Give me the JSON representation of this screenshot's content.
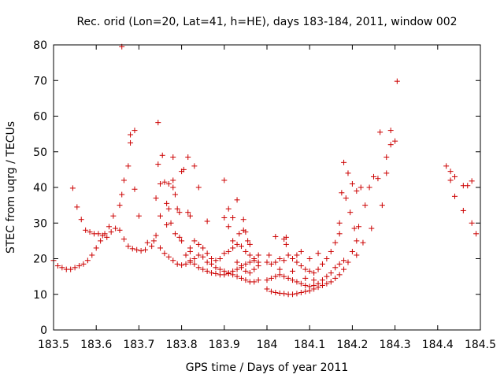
{
  "chart_data": {
    "type": "scatter",
    "title": "Rec. orid (Lon=20, Lat=41, h=HE), days 183-184, 2011, window 002",
    "xlabel": "GPS time / Days of year 2011",
    "ylabel": "STEC from uqrg / TECUs",
    "xlim": [
      183.5,
      184.5
    ],
    "ylim": [
      0,
      80
    ],
    "xticks": [
      183.5,
      183.6,
      183.7,
      183.8,
      183.9,
      184.0,
      184.1,
      184.2,
      184.3,
      184.4,
      184.5
    ],
    "xtick_labels": [
      "183.5",
      "183.6",
      "183.7",
      "183.8",
      "183.9",
      "184",
      "184.1",
      "184.2",
      "184.3",
      "184.4",
      "184.5"
    ],
    "yticks": [
      0,
      10,
      20,
      30,
      40,
      50,
      60,
      70,
      80
    ],
    "ytick_labels": [
      "0",
      "10",
      "20",
      "30",
      "40",
      "50",
      "60",
      "70",
      "80"
    ],
    "marker": "+",
    "color": "#cc0000",
    "points": [
      [
        183.5,
        19.5
      ],
      [
        183.51,
        18
      ],
      [
        183.52,
        17.5
      ],
      [
        183.53,
        17
      ],
      [
        183.54,
        17
      ],
      [
        183.55,
        17.5
      ],
      [
        183.56,
        18
      ],
      [
        183.57,
        18.5
      ],
      [
        183.58,
        19.5
      ],
      [
        183.59,
        21
      ],
      [
        183.6,
        23
      ],
      [
        183.61,
        25
      ],
      [
        183.62,
        27
      ],
      [
        183.63,
        29
      ],
      [
        183.64,
        32
      ],
      [
        183.655,
        35
      ],
      [
        183.66,
        38
      ],
      [
        183.665,
        42
      ],
      [
        183.675,
        46
      ],
      [
        183.68,
        52.5
      ],
      [
        183.68,
        54.8
      ],
      [
        183.69,
        56
      ],
      [
        183.69,
        39.5
      ],
      [
        183.7,
        32
      ],
      [
        183.545,
        39.8
      ],
      [
        183.555,
        34.5
      ],
      [
        183.565,
        31
      ],
      [
        183.575,
        28
      ],
      [
        183.585,
        27.5
      ],
      [
        183.595,
        27
      ],
      [
        183.605,
        27
      ],
      [
        183.615,
        26.5
      ],
      [
        183.625,
        26
      ],
      [
        183.635,
        27.5
      ],
      [
        183.645,
        28.5
      ],
      [
        183.655,
        28
      ],
      [
        183.665,
        25.5
      ],
      [
        183.675,
        23.5
      ],
      [
        183.685,
        22.8
      ],
      [
        183.695,
        22.5
      ],
      [
        183.705,
        22.2
      ],
      [
        183.715,
        22.5
      ],
      [
        183.72,
        24.5
      ],
      [
        183.73,
        23.5
      ],
      [
        183.735,
        25
      ],
      [
        183.74,
        26.5
      ],
      [
        183.66,
        79.5
      ],
      [
        183.74,
        37
      ],
      [
        183.745,
        46.5
      ],
      [
        183.745,
        58.2
      ],
      [
        183.755,
        49
      ],
      [
        183.75,
        41
      ],
      [
        183.76,
        41.5
      ],
      [
        183.765,
        35.5
      ],
      [
        183.77,
        34
      ],
      [
        183.77,
        41
      ],
      [
        183.78,
        40
      ],
      [
        183.78,
        42
      ],
      [
        183.78,
        48.5
      ],
      [
        183.785,
        38
      ],
      [
        183.79,
        34
      ],
      [
        183.795,
        33
      ],
      [
        183.8,
        44.5
      ],
      [
        183.805,
        45
      ],
      [
        183.815,
        48.5
      ],
      [
        183.815,
        33
      ],
      [
        183.82,
        32
      ],
      [
        183.82,
        22
      ],
      [
        183.83,
        46
      ],
      [
        183.84,
        40
      ],
      [
        183.86,
        30.5
      ],
      [
        183.75,
        32
      ],
      [
        183.765,
        29.5
      ],
      [
        183.775,
        30
      ],
      [
        183.785,
        27
      ],
      [
        183.795,
        26
      ],
      [
        183.8,
        25
      ],
      [
        183.75,
        23
      ],
      [
        183.76,
        21.5
      ],
      [
        183.77,
        20.5
      ],
      [
        183.78,
        19.5
      ],
      [
        183.79,
        18.5
      ],
      [
        183.8,
        18.2
      ],
      [
        183.81,
        18.5
      ],
      [
        183.82,
        19
      ],
      [
        183.83,
        20
      ],
      [
        183.84,
        21
      ],
      [
        183.85,
        20.5
      ],
      [
        183.86,
        19
      ],
      [
        183.87,
        18.5
      ],
      [
        183.88,
        17.5
      ],
      [
        183.89,
        17
      ],
      [
        183.9,
        16.5
      ],
      [
        183.91,
        16
      ],
      [
        183.92,
        16.5
      ],
      [
        183.93,
        17
      ],
      [
        183.94,
        17.5
      ],
      [
        183.95,
        18.5
      ],
      [
        183.96,
        19
      ],
      [
        183.97,
        20
      ],
      [
        183.98,
        21
      ],
      [
        183.81,
        21
      ],
      [
        183.82,
        23
      ],
      [
        183.83,
        25
      ],
      [
        183.84,
        24
      ],
      [
        183.85,
        23
      ],
      [
        183.86,
        21.5
      ],
      [
        183.87,
        20
      ],
      [
        183.88,
        19.5
      ],
      [
        183.89,
        20
      ],
      [
        183.9,
        21.5
      ],
      [
        183.91,
        22
      ],
      [
        183.92,
        23
      ],
      [
        183.93,
        24
      ],
      [
        183.94,
        23.5
      ],
      [
        183.95,
        22
      ],
      [
        183.96,
        21
      ],
      [
        183.97,
        19.5
      ],
      [
        183.98,
        18
      ],
      [
        183.82,
        19.5
      ],
      [
        183.83,
        18.5
      ],
      [
        183.84,
        17.5
      ],
      [
        183.85,
        17
      ],
      [
        183.86,
        16.5
      ],
      [
        183.87,
        16
      ],
      [
        183.88,
        15.8
      ],
      [
        183.89,
        15.5
      ],
      [
        183.9,
        15.5
      ],
      [
        183.91,
        15.8
      ],
      [
        183.92,
        15.5
      ],
      [
        183.93,
        15
      ],
      [
        183.94,
        14.5
      ],
      [
        183.95,
        14
      ],
      [
        183.96,
        13.5
      ],
      [
        183.97,
        13.5
      ],
      [
        183.98,
        14
      ],
      [
        183.9,
        42
      ],
      [
        183.91,
        34
      ],
      [
        183.92,
        31.5
      ],
      [
        183.93,
        36.5
      ],
      [
        183.935,
        27
      ],
      [
        183.945,
        28
      ],
      [
        183.945,
        31
      ],
      [
        183.95,
        27.5
      ],
      [
        183.955,
        25
      ],
      [
        183.96,
        24
      ],
      [
        183.92,
        25
      ],
      [
        183.91,
        29
      ],
      [
        183.9,
        31.5
      ],
      [
        183.93,
        19
      ],
      [
        183.94,
        18
      ],
      [
        183.95,
        16.5
      ],
      [
        183.96,
        16
      ],
      [
        183.97,
        17
      ],
      [
        183.98,
        19
      ],
      [
        184.0,
        11.5
      ],
      [
        184.01,
        10.8
      ],
      [
        184.02,
        10.5
      ],
      [
        184.03,
        10.3
      ],
      [
        184.04,
        10.2
      ],
      [
        184.05,
        10
      ],
      [
        184.06,
        10
      ],
      [
        184.07,
        10.2
      ],
      [
        184.08,
        10.5
      ],
      [
        184.09,
        10.8
      ],
      [
        184.1,
        11
      ],
      [
        184.11,
        11.5
      ],
      [
        184.12,
        12
      ],
      [
        184.13,
        12.5
      ],
      [
        184.14,
        13
      ],
      [
        184.15,
        13.5
      ],
      [
        184.16,
        14.5
      ],
      [
        184.17,
        15.5
      ],
      [
        184.18,
        17
      ],
      [
        184.19,
        19
      ],
      [
        184.2,
        22
      ],
      [
        184.21,
        25
      ],
      [
        184.0,
        14
      ],
      [
        184.01,
        14.5
      ],
      [
        184.02,
        15
      ],
      [
        184.03,
        15.5
      ],
      [
        184.04,
        15
      ],
      [
        184.05,
        14.5
      ],
      [
        184.06,
        14
      ],
      [
        184.07,
        13.5
      ],
      [
        184.08,
        13
      ],
      [
        184.09,
        12.5
      ],
      [
        184.1,
        12.2
      ],
      [
        184.11,
        12.5
      ],
      [
        184.12,
        13
      ],
      [
        184.13,
        14
      ],
      [
        184.14,
        15
      ],
      [
        184.15,
        16
      ],
      [
        184.16,
        17.5
      ],
      [
        184.17,
        18.5
      ],
      [
        184.18,
        19.5
      ],
      [
        184.0,
        19
      ],
      [
        184.005,
        21
      ],
      [
        184.01,
        18.5
      ],
      [
        184.02,
        19
      ],
      [
        184.03,
        20
      ],
      [
        184.04,
        19.5
      ],
      [
        184.045,
        24
      ],
      [
        184.045,
        26
      ],
      [
        184.05,
        21
      ],
      [
        184.06,
        20
      ],
      [
        184.07,
        19
      ],
      [
        184.08,
        18
      ],
      [
        184.09,
        17
      ],
      [
        184.1,
        16.5
      ],
      [
        184.11,
        16
      ],
      [
        184.12,
        17
      ],
      [
        184.13,
        18.5
      ],
      [
        184.14,
        20
      ],
      [
        184.15,
        22
      ],
      [
        184.16,
        24.5
      ],
      [
        184.17,
        27
      ],
      [
        184.02,
        26.2
      ],
      [
        184.04,
        25.5
      ],
      [
        184.07,
        21
      ],
      [
        184.08,
        22
      ],
      [
        184.1,
        20
      ],
      [
        184.12,
        21.5
      ],
      [
        184.03,
        17
      ],
      [
        184.06,
        16.5
      ],
      [
        184.09,
        14.5
      ],
      [
        184.11,
        14
      ],
      [
        184.17,
        30
      ],
      [
        184.175,
        38.5
      ],
      [
        184.18,
        47
      ],
      [
        184.19,
        44
      ],
      [
        184.2,
        41
      ],
      [
        184.21,
        39
      ],
      [
        184.22,
        40
      ],
      [
        184.23,
        35
      ],
      [
        184.24,
        40
      ],
      [
        184.25,
        43
      ],
      [
        184.26,
        42.5
      ],
      [
        184.265,
        55.5
      ],
      [
        184.27,
        35
      ],
      [
        184.28,
        44
      ],
      [
        184.28,
        48.5
      ],
      [
        184.29,
        52
      ],
      [
        184.29,
        56
      ],
      [
        184.3,
        53
      ],
      [
        184.305,
        69.8
      ],
      [
        184.185,
        37
      ],
      [
        184.195,
        33
      ],
      [
        184.205,
        28.5
      ],
      [
        184.215,
        29
      ],
      [
        184.225,
        24.5
      ],
      [
        184.245,
        28.5
      ],
      [
        184.21,
        21
      ]
    ],
    "points_b": [
      [
        184.42,
        46
      ],
      [
        184.43,
        44.5
      ],
      [
        184.43,
        42
      ],
      [
        184.44,
        43
      ],
      [
        184.44,
        37.5
      ],
      [
        184.46,
        40.5
      ],
      [
        184.47,
        40.5
      ],
      [
        184.48,
        41.8
      ],
      [
        184.46,
        33.5
      ],
      [
        184.48,
        30
      ],
      [
        184.49,
        27
      ]
    ]
  }
}
